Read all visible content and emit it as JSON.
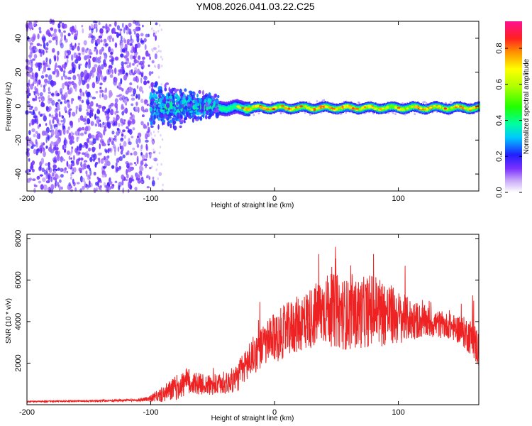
{
  "title": "YM08.2026.041.03.22.C25",
  "chart_data": [
    {
      "type": "heatmap",
      "xlabel": "Height of straight line (km)",
      "ylabel": "Frequency (Hz)",
      "xlim": [
        -200,
        165
      ],
      "ylim": [
        -50,
        50
      ],
      "x_ticks": [
        -200,
        -100,
        0,
        100
      ],
      "y_ticks": [
        -40,
        -20,
        0,
        20,
        40
      ],
      "x_tick_labels": [
        "-200",
        "-100",
        "0",
        "100"
      ],
      "y_tick_labels": [
        "-40",
        "-20",
        "0",
        "20",
        "40"
      ],
      "colorbar": {
        "label": "Normalized spectral amplitude",
        "range": [
          0.0,
          0.95
        ],
        "ticks": [
          0.0,
          0.2,
          0.4,
          0.6,
          0.8
        ],
        "tick_labels": [
          "0.0",
          "0.2",
          "0.4",
          "0.6",
          "0.8"
        ]
      },
      "ridge": {
        "x_start": -45,
        "x_end": 165,
        "center_hz": -1,
        "amplitude": 0.8
      },
      "scatter_region": {
        "x_start": -200,
        "x_end": -100,
        "freq_range": [
          -50,
          50
        ],
        "amplitude": 0.15
      },
      "transition": {
        "x_start": -100,
        "x_end": -45,
        "spread_hz": 10,
        "amplitude": 0.35
      }
    },
    {
      "type": "line",
      "xlabel": "Height of straight line (km)",
      "ylabel": "SNR (10 * v/v)",
      "xlim": [
        -200,
        165
      ],
      "ylim": [
        0,
        8200
      ],
      "x_ticks": [
        -200,
        -100,
        0,
        100
      ],
      "y_ticks": [
        2000,
        4000,
        6000,
        8000
      ],
      "x_tick_labels": [
        "-200",
        "-100",
        "0",
        "100"
      ],
      "y_tick_labels": [
        "2000",
        "4000",
        "6000",
        "8000"
      ],
      "series": [
        {
          "name": "SNR",
          "color": "#ee2222",
          "x": [
            -200,
            -150,
            -110,
            -100,
            -90,
            -80,
            -70,
            -60,
            -50,
            -40,
            -30,
            -20,
            -10,
            0,
            10,
            20,
            30,
            40,
            50,
            60,
            70,
            80,
            90,
            100,
            110,
            120,
            130,
            140,
            150,
            160,
            165
          ],
          "y": [
            150,
            180,
            220,
            300,
            500,
            800,
            1100,
            1000,
            900,
            1000,
            1300,
            2200,
            2800,
            3200,
            3600,
            3900,
            4200,
            4600,
            4500,
            4300,
            4400,
            4600,
            4400,
            4200,
            4100,
            4000,
            3900,
            3800,
            3600,
            3200,
            2600
          ],
          "noise": [
            30,
            40,
            60,
            150,
            400,
            600,
            700,
            500,
            500,
            500,
            700,
            900,
            1000,
            1200,
            1300,
            1400,
            1500,
            1700,
            1800,
            1700,
            1700,
            1800,
            1600,
            1300,
            1000,
            800,
            700,
            600,
            700,
            900,
            1000
          ]
        }
      ]
    }
  ]
}
